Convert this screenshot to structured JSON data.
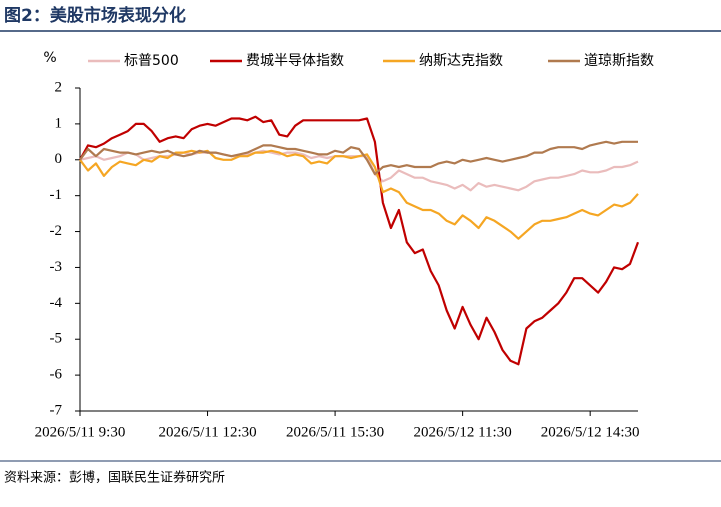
{
  "chart_data": {
    "type": "line",
    "title": "图2：美股市场表现分化",
    "ylabel": "%",
    "source": "资料来源：彭博，国联民生证券研究所",
    "categories": [
      "2026/5/11 9:30",
      null,
      null,
      null,
      null,
      null,
      null,
      null,
      null,
      null,
      null,
      null,
      null,
      null,
      null,
      null,
      "2026/5/11 12:30",
      null,
      null,
      null,
      null,
      null,
      null,
      null,
      null,
      null,
      null,
      null,
      null,
      null,
      null,
      null,
      "2026/5/11 15:30",
      null,
      null,
      null,
      null,
      null,
      null,
      null,
      null,
      null,
      null,
      null,
      null,
      null,
      null,
      null,
      "2026/5/12 11:30",
      null,
      null,
      null,
      null,
      null,
      null,
      null,
      null,
      null,
      null,
      null,
      null,
      null,
      null,
      null,
      "2026/5/12 14:30",
      null,
      null,
      null,
      null,
      null,
      null
    ],
    "ylim": [
      -7,
      2
    ],
    "yticks": [
      2,
      1,
      0,
      -1,
      -2,
      -3,
      -4,
      -5,
      -6,
      -7
    ],
    "series": [
      {
        "name": "标普500",
        "color": "#eabcbc",
        "values": [
          0,
          0.05,
          0.1,
          0.0,
          0.05,
          0.1,
          0.2,
          0.15,
          0.0,
          0.05,
          0.1,
          0.1,
          0.15,
          0.2,
          0.15,
          0.2,
          0.2,
          0.2,
          0.15,
          0.1,
          0.1,
          0.15,
          0.2,
          0.25,
          0.2,
          0.15,
          0.2,
          0.2,
          0.15,
          0.05,
          0.1,
          0.05,
          0.1,
          0.1,
          0.1,
          0.1,
          0.1,
          -0.4,
          -0.6,
          -0.5,
          -0.3,
          -0.4,
          -0.5,
          -0.5,
          -0.6,
          -0.65,
          -0.7,
          -0.8,
          -0.7,
          -0.85,
          -0.65,
          -0.75,
          -0.7,
          -0.75,
          -0.8,
          -0.85,
          -0.75,
          -0.6,
          -0.55,
          -0.5,
          -0.5,
          -0.45,
          -0.4,
          -0.3,
          -0.35,
          -0.35,
          -0.3,
          -0.2,
          -0.2,
          -0.15,
          -0.05
        ]
      },
      {
        "name": "费城半导体指数",
        "color": "#c00000",
        "values": [
          0,
          0.4,
          0.35,
          0.45,
          0.6,
          0.7,
          0.8,
          1.0,
          1.0,
          0.8,
          0.5,
          0.6,
          0.65,
          0.6,
          0.85,
          0.95,
          1.0,
          0.95,
          1.05,
          1.15,
          1.15,
          1.1,
          1.2,
          1.05,
          1.1,
          0.7,
          0.65,
          0.95,
          1.1,
          1.1,
          1.1,
          1.1,
          1.1,
          1.1,
          1.1,
          1.1,
          1.15,
          0.5,
          -1.2,
          -1.9,
          -1.4,
          -2.3,
          -2.6,
          -2.5,
          -3.1,
          -3.5,
          -4.2,
          -4.7,
          -4.1,
          -4.6,
          -5.0,
          -4.4,
          -4.8,
          -5.3,
          -5.6,
          -5.7,
          -4.7,
          -4.5,
          -4.4,
          -4.2,
          -4.0,
          -3.7,
          -3.3,
          -3.3,
          -3.5,
          -3.7,
          -3.4,
          -3.0,
          -3.05,
          -2.9,
          -2.3
        ]
      },
      {
        "name": "纳斯达克指数",
        "color": "#f5a623",
        "values": [
          0,
          -0.3,
          -0.1,
          -0.45,
          -0.2,
          -0.05,
          -0.1,
          -0.15,
          0.0,
          -0.05,
          0.1,
          0.05,
          0.2,
          0.2,
          0.25,
          0.2,
          0.25,
          0.05,
          0.0,
          0.0,
          0.1,
          0.1,
          0.2,
          0.2,
          0.25,
          0.2,
          0.1,
          0.15,
          0.1,
          -0.1,
          -0.05,
          -0.1,
          0.1,
          0.1,
          0.05,
          0.1,
          0.15,
          -0.2,
          -0.9,
          -0.8,
          -0.9,
          -1.2,
          -1.3,
          -1.4,
          -1.4,
          -1.5,
          -1.7,
          -1.8,
          -1.55,
          -1.7,
          -1.9,
          -1.6,
          -1.7,
          -1.85,
          -2.0,
          -2.2,
          -2.0,
          -1.8,
          -1.7,
          -1.7,
          -1.65,
          -1.6,
          -1.5,
          -1.4,
          -1.5,
          -1.55,
          -1.4,
          -1.25,
          -1.3,
          -1.2,
          -0.95
        ]
      },
      {
        "name": "道琼斯指数",
        "color": "#b07a4f",
        "values": [
          0,
          0.3,
          0.1,
          0.3,
          0.25,
          0.2,
          0.2,
          0.15,
          0.2,
          0.25,
          0.2,
          0.25,
          0.15,
          0.1,
          0.15,
          0.25,
          0.2,
          0.2,
          0.15,
          0.1,
          0.15,
          0.2,
          0.3,
          0.4,
          0.4,
          0.35,
          0.3,
          0.3,
          0.25,
          0.2,
          0.15,
          0.15,
          0.25,
          0.2,
          0.35,
          0.3,
          0.0,
          -0.4,
          -0.2,
          -0.15,
          -0.2,
          -0.15,
          -0.2,
          -0.2,
          -0.2,
          -0.1,
          -0.05,
          -0.1,
          0.0,
          -0.05,
          0.0,
          0.05,
          0.0,
          -0.05,
          0.0,
          0.05,
          0.1,
          0.2,
          0.2,
          0.3,
          0.35,
          0.35,
          0.35,
          0.3,
          0.4,
          0.45,
          0.5,
          0.45,
          0.5,
          0.5,
          0.5
        ]
      }
    ]
  }
}
